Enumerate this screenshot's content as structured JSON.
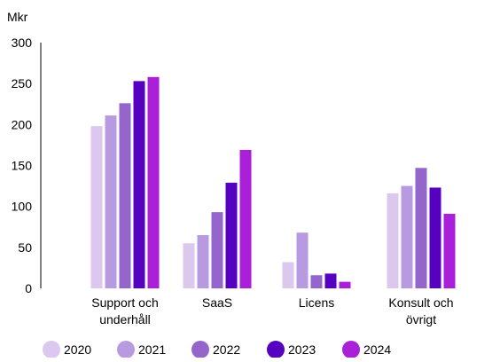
{
  "chart_data": {
    "type": "bar",
    "ylabel": "Mkr",
    "ylim": [
      0,
      300
    ],
    "yticks": [
      "0",
      "50",
      "100",
      "150",
      "200",
      "250",
      "300"
    ],
    "grid": false,
    "legend_position": "bottom",
    "categories": [
      [
        "Support och",
        "underhåll"
      ],
      [
        "SaaS"
      ],
      [
        "Licens"
      ],
      [
        "Konsult och",
        "övrigt"
      ]
    ],
    "series": [
      {
        "name": "2020",
        "color": "#dcc8ee",
        "values": [
          198,
          55,
          32,
          116
        ]
      },
      {
        "name": "2021",
        "color": "#b89ae0",
        "values": [
          211,
          65,
          68,
          125
        ]
      },
      {
        "name": "2022",
        "color": "#9466cc",
        "values": [
          226,
          93,
          16,
          147
        ]
      },
      {
        "name": "2023",
        "color": "#5600c0",
        "values": [
          253,
          129,
          18,
          123
        ]
      },
      {
        "name": "2024",
        "color": "#aa1fd8",
        "values": [
          258,
          169,
          8,
          91
        ]
      }
    ]
  }
}
